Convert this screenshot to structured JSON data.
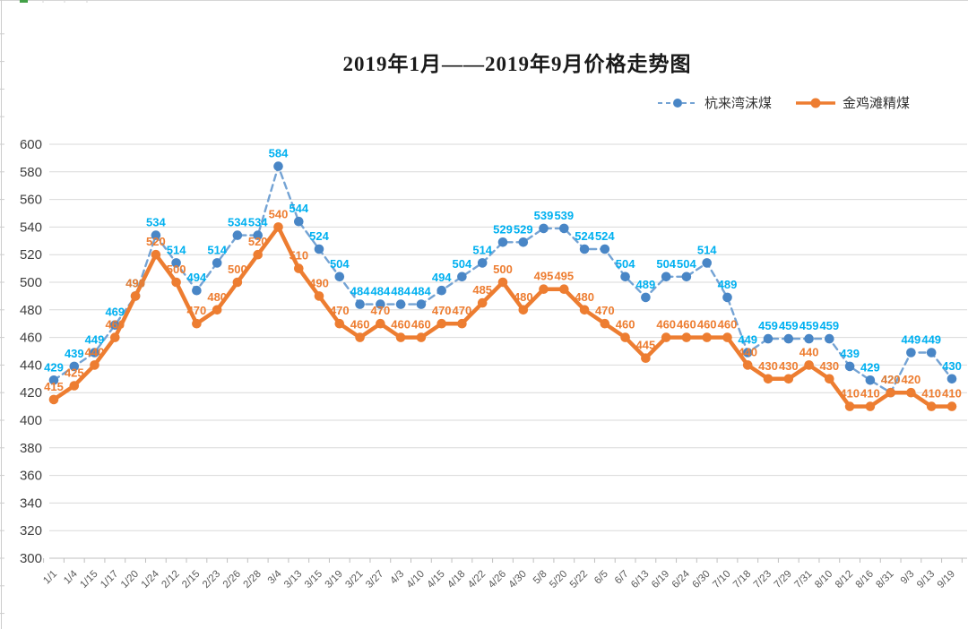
{
  "title": "2019年1月——2019年9月价格走势图",
  "chart_data": {
    "type": "line",
    "title": "2019年1月——2019年9月价格走势图",
    "categories": [
      "1/1",
      "1/4",
      "1/15",
      "1/17",
      "1/20",
      "1/24",
      "2/12",
      "2/15",
      "2/23",
      "2/26",
      "2/28",
      "3/4",
      "3/13",
      "3/15",
      "3/19",
      "3/21",
      "3/27",
      "4/3",
      "4/10",
      "4/15",
      "4/18",
      "4/22",
      "4/26",
      "4/30",
      "5/8",
      "5/20",
      "5/22",
      "6/5",
      "6/7",
      "6/13",
      "6/19",
      "6/24",
      "6/30",
      "7/10",
      "7/18",
      "7/23",
      "7/29",
      "7/31",
      "8/10",
      "8/12",
      "8/16",
      "8/31",
      "9/3",
      "9/13",
      "9/19"
    ],
    "series": [
      {
        "name": "杭来湾沫煤",
        "line_style": "dashed",
        "line_color": "#74a3d4",
        "marker_color": "#4986c6",
        "label_color": "#00b0f0",
        "values": [
          429,
          439,
          449,
          469,
          490,
          534,
          514,
          494,
          514,
          534,
          534,
          584,
          544,
          524,
          504,
          484,
          484,
          484,
          484,
          494,
          504,
          514,
          529,
          529,
          539,
          539,
          524,
          524,
          504,
          489,
          504,
          504,
          514,
          489,
          449,
          459,
          459,
          459,
          459,
          439,
          429,
          420,
          449,
          449,
          430
        ]
      },
      {
        "name": "金鸡滩精煤",
        "line_style": "solid",
        "line_color": "#ed7d31",
        "marker_color": "#ed7d31",
        "label_color": "#ed7d31",
        "values": [
          415,
          425,
          440,
          460,
          490,
          520,
          500,
          470,
          480,
          500,
          520,
          540,
          510,
          490,
          470,
          460,
          470,
          460,
          460,
          470,
          470,
          485,
          500,
          480,
          495,
          495,
          480,
          470,
          460,
          445,
          460,
          460,
          460,
          460,
          440,
          430,
          430,
          440,
          430,
          410,
          410,
          420,
          420,
          410,
          410
        ]
      }
    ],
    "ylim": [
      300,
      600
    ],
    "ytick_step": 20,
    "ytick_labels": [
      "300",
      "320",
      "340",
      "360",
      "380",
      "400",
      "420",
      "440",
      "460",
      "480",
      "500",
      "520",
      "540",
      "560",
      "580",
      "600"
    ],
    "grid": true,
    "grid_color": "#d9d9d9",
    "axis_line_color": "#bfbfbf",
    "ytick_text_color": "#404040",
    "xtick_text_color": "#595959",
    "data_labels": true,
    "legend_position": "top-right"
  }
}
